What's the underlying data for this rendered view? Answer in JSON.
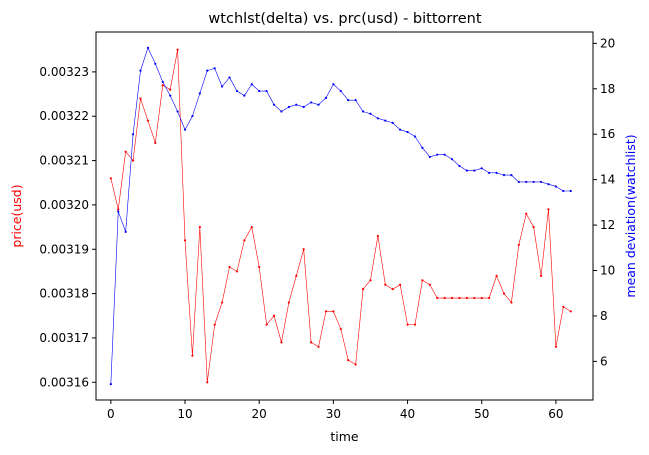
{
  "chart_data": {
    "type": "line",
    "title": "wtchlst(delta) vs. prc(usd) - bittorrent",
    "xlabel": "time",
    "ylabel_left": "price(usd)",
    "ylabel_right": "mean deviation(watchlist)",
    "xlim": [
      -2,
      65
    ],
    "xticks": [
      0,
      10,
      20,
      30,
      40,
      50,
      60
    ],
    "y_left": {
      "lim": [
        0.003156,
        0.003239
      ],
      "ticks": [
        0.00316,
        0.00317,
        0.00318,
        0.00319,
        0.0032,
        0.00321,
        0.00322,
        0.00323
      ],
      "ticklabels": [
        "0.00316",
        "0.00317",
        "0.00318",
        "0.00319",
        "0.00320",
        "0.00321",
        "0.00322",
        "0.00323"
      ]
    },
    "y_right": {
      "lim": [
        4.3,
        20.5
      ],
      "ticks": [
        6,
        8,
        10,
        12,
        14,
        16,
        18,
        20
      ],
      "ticklabels": [
        "6",
        "8",
        "10",
        "12",
        "14",
        "16",
        "18",
        "20"
      ]
    },
    "x": [
      0,
      1,
      2,
      3,
      4,
      5,
      6,
      7,
      8,
      9,
      10,
      11,
      12,
      13,
      14,
      15,
      16,
      17,
      18,
      19,
      20,
      21,
      22,
      23,
      24,
      25,
      26,
      27,
      28,
      29,
      30,
      31,
      32,
      33,
      34,
      35,
      36,
      37,
      38,
      39,
      40,
      41,
      42,
      43,
      44,
      45,
      46,
      47,
      48,
      49,
      50,
      51,
      52,
      53,
      54,
      55,
      56,
      57,
      58,
      59,
      60,
      61,
      62
    ],
    "series": [
      {
        "axis": "left",
        "color": "#ff0000",
        "values": [
          0.003206,
          0.003199,
          0.003212,
          0.00321,
          0.003224,
          0.003219,
          0.003214,
          0.003227,
          0.003226,
          0.003235,
          0.003192,
          0.003166,
          0.003195,
          0.00316,
          0.003173,
          0.003178,
          0.003186,
          0.003185,
          0.003192,
          0.003195,
          0.003186,
          0.003173,
          0.003175,
          0.003169,
          0.003178,
          0.003184,
          0.00319,
          0.003169,
          0.003168,
          0.003176,
          0.003176,
          0.003172,
          0.003165,
          0.003164,
          0.003181,
          0.003183,
          0.003193,
          0.003182,
          0.003181,
          0.003182,
          0.003173,
          0.003173,
          0.003183,
          0.003182,
          0.003179,
          0.003179,
          0.003179,
          0.003179,
          0.003179,
          0.003179,
          0.003179,
          0.003179,
          0.003184,
          0.00318,
          0.003178,
          0.003191,
          0.003198,
          0.003195,
          0.003184,
          0.003199,
          0.003168,
          0.003177,
          0.003176
        ]
      },
      {
        "axis": "right",
        "color": "#0000ff",
        "values": [
          5.0,
          12.6,
          11.7,
          16.0,
          18.8,
          19.8,
          19.1,
          18.3,
          17.7,
          17.0,
          16.2,
          16.8,
          17.8,
          18.8,
          18.9,
          18.1,
          18.5,
          17.9,
          17.7,
          18.2,
          17.9,
          17.9,
          17.3,
          17.0,
          17.2,
          17.3,
          17.2,
          17.4,
          17.3,
          17.6,
          18.2,
          17.9,
          17.5,
          17.5,
          17.0,
          16.9,
          16.7,
          16.6,
          16.5,
          16.2,
          16.1,
          15.9,
          15.4,
          15.0,
          15.1,
          15.1,
          14.9,
          14.6,
          14.4,
          14.4,
          14.5,
          14.3,
          14.3,
          14.2,
          14.2,
          13.9,
          13.9,
          13.9,
          13.9,
          13.8,
          13.7,
          13.5,
          13.5
        ]
      }
    ]
  }
}
